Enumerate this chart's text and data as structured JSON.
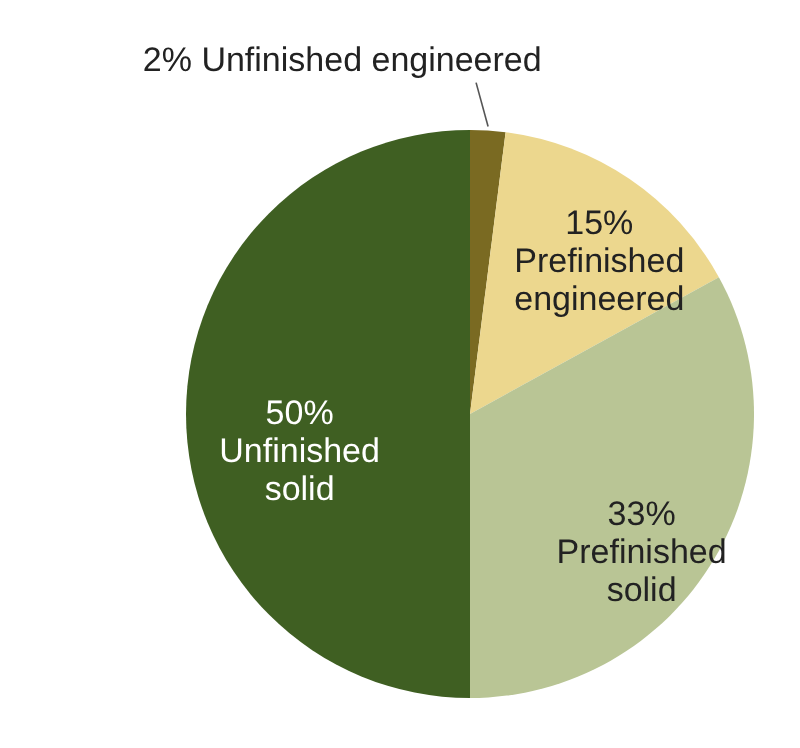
{
  "chart_data": {
    "type": "pie",
    "categories": [
      "Unfinished engineered",
      "Prefinished engineered",
      "Prefinished solid",
      "Unfinished solid"
    ],
    "values": [
      2,
      15,
      33,
      50
    ],
    "value_labels": [
      "2%",
      "15%",
      "33%",
      "50%"
    ],
    "colors": [
      "#7a6a22",
      "#ecd78e",
      "#b9c595",
      "#3f5f22"
    ]
  }
}
